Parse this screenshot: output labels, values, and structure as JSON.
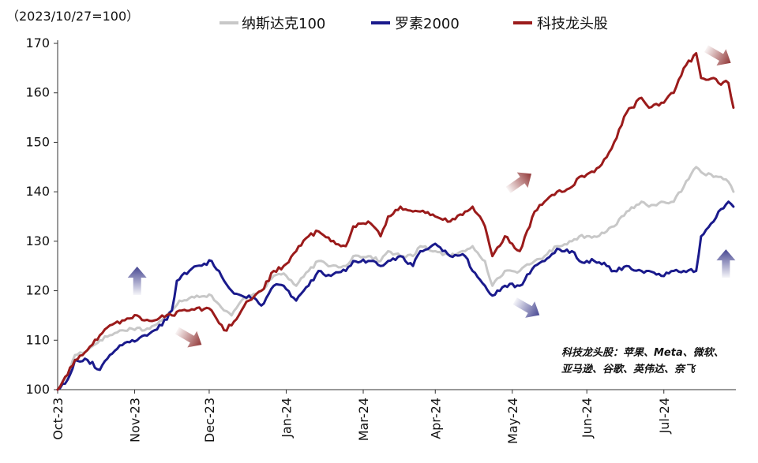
{
  "chart_data": {
    "type": "line",
    "unit_label": "（2023/10/27=100）",
    "ylim": [
      100,
      170
    ],
    "y_ticks": [
      100,
      110,
      120,
      130,
      140,
      150,
      160,
      170
    ],
    "y_tick_labels": [
      "100",
      "110",
      "120",
      "130",
      "140",
      "150",
      "160",
      "170"
    ],
    "x_range": [
      "2023-10-27",
      "2024-07-26"
    ],
    "x_ticks": [
      {
        "date": "2023-10-27",
        "label": "Oct-23"
      },
      {
        "date": "2023-11-27",
        "label": "Nov-23"
      },
      {
        "date": "2023-12-27",
        "label": "Dec-23"
      },
      {
        "date": "2024-01-27",
        "label": "Jan-24"
      },
      {
        "date": "2024-02-27",
        "label": "Mar-24"
      },
      {
        "date": "2024-03-27",
        "label": "Apr-24"
      },
      {
        "date": "2024-04-27",
        "label": "May-24"
      },
      {
        "date": "2024-05-27",
        "label": "Jun-24"
      },
      {
        "date": "2024-06-27",
        "label": "Jul-24"
      }
    ],
    "grid": false,
    "legend_position": "top",
    "series": [
      {
        "name": "纳斯达克100",
        "color": "#c8c8c8",
        "points": [
          [
            "2023-10-27",
            100
          ],
          [
            "2023-10-31",
            103
          ],
          [
            "2023-11-03",
            107
          ],
          [
            "2023-11-08",
            108
          ],
          [
            "2023-11-13",
            110
          ],
          [
            "2023-11-17",
            111
          ],
          [
            "2023-11-22",
            112
          ],
          [
            "2023-11-28",
            112.5
          ],
          [
            "2023-12-01",
            112
          ],
          [
            "2023-12-05",
            113
          ],
          [
            "2023-12-08",
            114
          ],
          [
            "2023-12-12",
            116
          ],
          [
            "2023-12-15",
            118
          ],
          [
            "2023-12-19",
            118.5
          ],
          [
            "2023-12-22",
            119
          ],
          [
            "2023-12-28",
            119
          ],
          [
            "2024-01-02",
            116
          ],
          [
            "2024-01-05",
            115
          ],
          [
            "2024-01-09",
            118
          ],
          [
            "2024-01-12",
            119
          ],
          [
            "2024-01-17",
            120
          ],
          [
            "2024-01-22",
            123
          ],
          [
            "2024-01-26",
            123.5
          ],
          [
            "2024-01-31",
            121
          ],
          [
            "2024-02-05",
            124
          ],
          [
            "2024-02-09",
            126
          ],
          [
            "2024-02-14",
            125
          ],
          [
            "2024-02-20",
            125
          ],
          [
            "2024-02-23",
            127
          ],
          [
            "2024-02-29",
            127
          ],
          [
            "2024-03-05",
            126
          ],
          [
            "2024-03-08",
            128
          ],
          [
            "2024-03-13",
            127
          ],
          [
            "2024-03-18",
            127
          ],
          [
            "2024-03-21",
            129
          ],
          [
            "2024-03-27",
            128
          ],
          [
            "2024-04-02",
            127
          ],
          [
            "2024-04-08",
            128
          ],
          [
            "2024-04-11",
            129
          ],
          [
            "2024-04-16",
            126
          ],
          [
            "2024-04-19",
            121
          ],
          [
            "2024-04-24",
            124
          ],
          [
            "2024-04-30",
            124
          ],
          [
            "2024-05-06",
            126
          ],
          [
            "2024-05-10",
            127
          ],
          [
            "2024-05-15",
            129
          ],
          [
            "2024-05-21",
            130
          ],
          [
            "2024-05-24",
            131
          ],
          [
            "2024-05-30",
            131
          ],
          [
            "2024-06-04",
            132
          ],
          [
            "2024-06-07",
            133
          ],
          [
            "2024-06-12",
            136
          ],
          [
            "2024-06-18",
            138
          ],
          [
            "2024-06-21",
            137
          ],
          [
            "2024-06-26",
            138
          ],
          [
            "2024-07-01",
            138
          ],
          [
            "2024-07-05",
            141
          ],
          [
            "2024-07-10",
            145
          ],
          [
            "2024-07-12",
            144
          ],
          [
            "2024-07-17",
            143
          ],
          [
            "2024-07-19",
            143
          ],
          [
            "2024-07-23",
            142
          ],
          [
            "2024-07-25",
            140
          ]
        ]
      },
      {
        "name": "罗素2000",
        "color": "#1a1a8c",
        "points": [
          [
            "2023-10-27",
            100
          ],
          [
            "2023-10-31",
            102
          ],
          [
            "2023-11-03",
            106
          ],
          [
            "2023-11-08",
            106
          ],
          [
            "2023-11-13",
            104
          ],
          [
            "2023-11-17",
            107
          ],
          [
            "2023-11-22",
            109
          ],
          [
            "2023-11-28",
            110
          ],
          [
            "2023-12-01",
            111
          ],
          [
            "2023-12-05",
            112
          ],
          [
            "2023-12-08",
            113
          ],
          [
            "2023-12-12",
            116
          ],
          [
            "2023-12-14",
            122
          ],
          [
            "2023-12-19",
            124
          ],
          [
            "2023-12-22",
            125
          ],
          [
            "2023-12-28",
            126
          ],
          [
            "2024-01-02",
            122
          ],
          [
            "2024-01-05",
            120
          ],
          [
            "2024-01-09",
            119
          ],
          [
            "2024-01-12",
            119
          ],
          [
            "2024-01-17",
            117
          ],
          [
            "2024-01-22",
            121
          ],
          [
            "2024-01-26",
            121
          ],
          [
            "2024-01-31",
            118
          ],
          [
            "2024-02-05",
            121
          ],
          [
            "2024-02-09",
            124
          ],
          [
            "2024-02-14",
            123
          ],
          [
            "2024-02-20",
            124
          ],
          [
            "2024-02-23",
            126
          ],
          [
            "2024-02-29",
            126
          ],
          [
            "2024-03-05",
            125
          ],
          [
            "2024-03-08",
            126
          ],
          [
            "2024-03-13",
            127
          ],
          [
            "2024-03-18",
            125
          ],
          [
            "2024-03-21",
            128
          ],
          [
            "2024-03-27",
            129.5
          ],
          [
            "2024-04-02",
            127
          ],
          [
            "2024-04-08",
            127
          ],
          [
            "2024-04-11",
            124
          ],
          [
            "2024-04-16",
            121
          ],
          [
            "2024-04-19",
            119
          ],
          [
            "2024-04-24",
            121
          ],
          [
            "2024-04-30",
            121
          ],
          [
            "2024-05-06",
            125
          ],
          [
            "2024-05-10",
            126
          ],
          [
            "2024-05-15",
            128.5
          ],
          [
            "2024-05-21",
            128
          ],
          [
            "2024-05-24",
            126
          ],
          [
            "2024-05-30",
            126
          ],
          [
            "2024-06-04",
            125
          ],
          [
            "2024-06-07",
            124
          ],
          [
            "2024-06-12",
            125
          ],
          [
            "2024-06-18",
            124
          ],
          [
            "2024-06-21",
            124
          ],
          [
            "2024-06-26",
            123
          ],
          [
            "2024-07-01",
            124
          ],
          [
            "2024-07-05",
            124
          ],
          [
            "2024-07-10",
            124
          ],
          [
            "2024-07-12",
            131
          ],
          [
            "2024-07-17",
            134
          ],
          [
            "2024-07-19",
            136
          ],
          [
            "2024-07-23",
            138
          ],
          [
            "2024-07-25",
            137
          ]
        ]
      },
      {
        "name": "科技龙头股",
        "color": "#9b1b1b",
        "points": [
          [
            "2023-10-27",
            100
          ],
          [
            "2023-10-31",
            103
          ],
          [
            "2023-11-03",
            106
          ],
          [
            "2023-11-08",
            108
          ],
          [
            "2023-11-13",
            111
          ],
          [
            "2023-11-17",
            113
          ],
          [
            "2023-11-22",
            114
          ],
          [
            "2023-11-28",
            115
          ],
          [
            "2023-12-01",
            114
          ],
          [
            "2023-12-05",
            114
          ],
          [
            "2023-12-08",
            115
          ],
          [
            "2023-12-12",
            115
          ],
          [
            "2023-12-15",
            116
          ],
          [
            "2023-12-19",
            116
          ],
          [
            "2023-12-22",
            116.5
          ],
          [
            "2023-12-28",
            116
          ],
          [
            "2024-01-02",
            112
          ],
          [
            "2024-01-05",
            113
          ],
          [
            "2024-01-09",
            116
          ],
          [
            "2024-01-12",
            118
          ],
          [
            "2024-01-17",
            120
          ],
          [
            "2024-01-22",
            124
          ],
          [
            "2024-01-26",
            125
          ],
          [
            "2024-01-31",
            128
          ],
          [
            "2024-02-05",
            131
          ],
          [
            "2024-02-09",
            132
          ],
          [
            "2024-02-14",
            130
          ],
          [
            "2024-02-20",
            129
          ],
          [
            "2024-02-23",
            133
          ],
          [
            "2024-02-29",
            134
          ],
          [
            "2024-03-05",
            131
          ],
          [
            "2024-03-08",
            135
          ],
          [
            "2024-03-13",
            137
          ],
          [
            "2024-03-18",
            136
          ],
          [
            "2024-03-21",
            136
          ],
          [
            "2024-03-27",
            135
          ],
          [
            "2024-04-02",
            134
          ],
          [
            "2024-04-08",
            136
          ],
          [
            "2024-04-11",
            137
          ],
          [
            "2024-04-16",
            133
          ],
          [
            "2024-04-19",
            127
          ],
          [
            "2024-04-24",
            131
          ],
          [
            "2024-04-30",
            128
          ],
          [
            "2024-05-06",
            136
          ],
          [
            "2024-05-10",
            138
          ],
          [
            "2024-05-15",
            140
          ],
          [
            "2024-05-21",
            141
          ],
          [
            "2024-05-24",
            143
          ],
          [
            "2024-05-30",
            144
          ],
          [
            "2024-06-04",
            147
          ],
          [
            "2024-06-07",
            150
          ],
          [
            "2024-06-12",
            156
          ],
          [
            "2024-06-18",
            159
          ],
          [
            "2024-06-21",
            157
          ],
          [
            "2024-06-26",
            158
          ],
          [
            "2024-07-01",
            160
          ],
          [
            "2024-07-05",
            165
          ],
          [
            "2024-07-10",
            168
          ],
          [
            "2024-07-12",
            163
          ],
          [
            "2024-07-17",
            163
          ],
          [
            "2024-07-19",
            162
          ],
          [
            "2024-07-23",
            162
          ],
          [
            "2024-07-25",
            157
          ]
        ]
      }
    ],
    "annotation": {
      "line1": "科技龙头股：苹果、Meta、微软、",
      "line2": "亚马逊、谷歌、英伟达、奈飞"
    },
    "trend_arrows": [
      {
        "date": "2023-11-28",
        "value": 122,
        "direction": "up",
        "color": "#3d3d8c"
      },
      {
        "date": "2023-12-19",
        "value": 110.5,
        "direction": "down-right",
        "color": "#8b2b2b"
      },
      {
        "date": "2024-04-30",
        "value": 142,
        "direction": "up-right",
        "color": "#8b2b2b"
      },
      {
        "date": "2024-05-03",
        "value": 116.5,
        "direction": "down-right",
        "color": "#3d3d8c"
      },
      {
        "date": "2024-07-19",
        "value": 167.5,
        "direction": "down-right",
        "color": "#8b2b2b"
      },
      {
        "date": "2024-07-22",
        "value": 125.5,
        "direction": "up",
        "color": "#3d3d8c"
      }
    ]
  }
}
